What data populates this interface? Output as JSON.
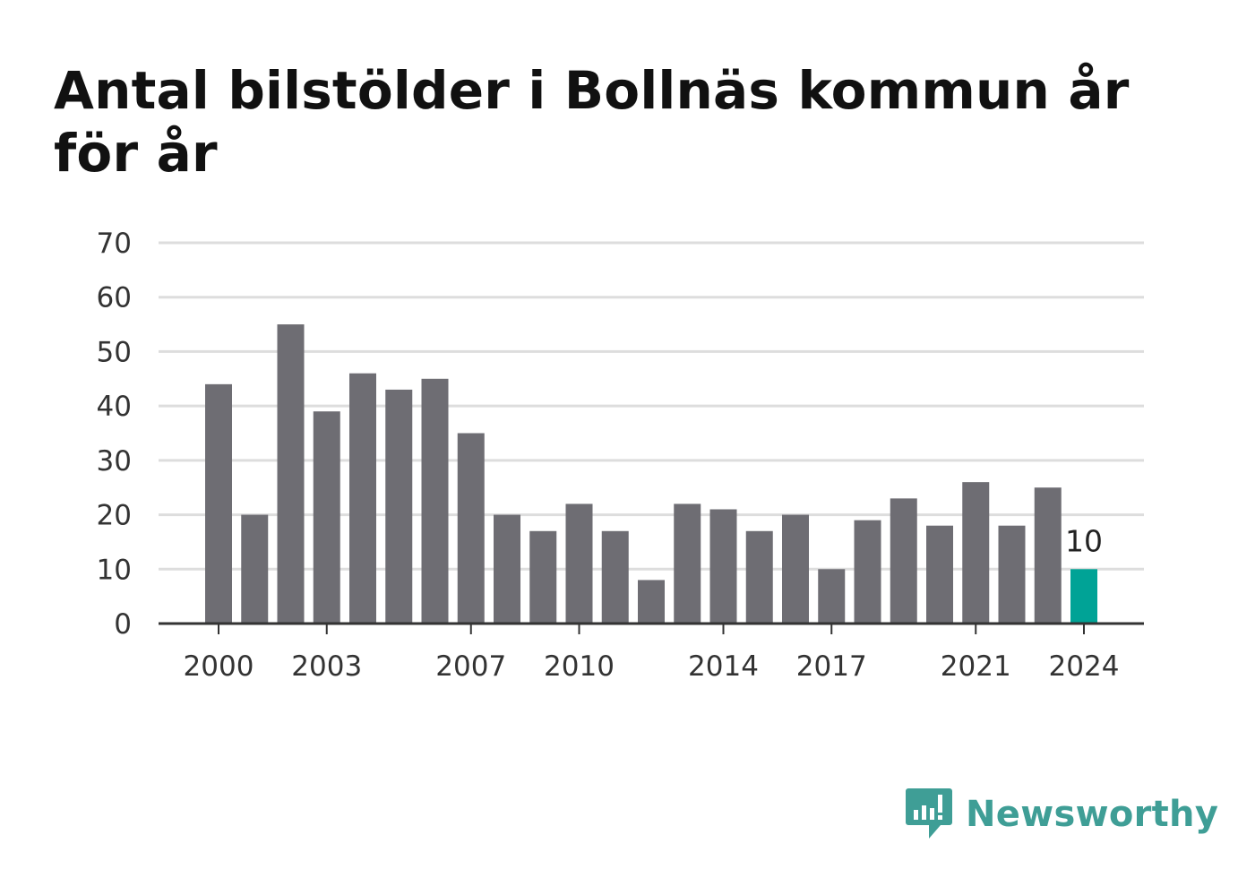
{
  "title": "Antal bilstölder i Bollnäs kommun år för år",
  "brand": {
    "name": "Newsworthy",
    "color": "#3f9e96"
  },
  "colors": {
    "bar": "#6e6d73",
    "highlight": "#00a396",
    "grid": "#dddddd",
    "axis": "#333333"
  },
  "chart_data": {
    "type": "bar",
    "title": "Antal bilstölder i Bollnäs kommun år för år",
    "xlabel": "",
    "ylabel": "",
    "ylim": [
      0,
      70
    ],
    "yticks": [
      0,
      10,
      20,
      30,
      40,
      50,
      60,
      70
    ],
    "categories": [
      2000,
      2001,
      2002,
      2003,
      2004,
      2005,
      2006,
      2007,
      2008,
      2009,
      2010,
      2011,
      2012,
      2013,
      2014,
      2015,
      2016,
      2017,
      2018,
      2019,
      2020,
      2021,
      2022,
      2023,
      2024
    ],
    "values": [
      44,
      20,
      55,
      39,
      46,
      43,
      45,
      35,
      20,
      17,
      22,
      17,
      8,
      22,
      21,
      17,
      20,
      10,
      19,
      23,
      18,
      26,
      18,
      25,
      10
    ],
    "xtick_labels": [
      "2000",
      "2003",
      "2007",
      "2010",
      "2014",
      "2017",
      "2021",
      "2024"
    ],
    "highlight_category": 2024,
    "highlight_label": "10",
    "grid": true,
    "legend": "none"
  }
}
